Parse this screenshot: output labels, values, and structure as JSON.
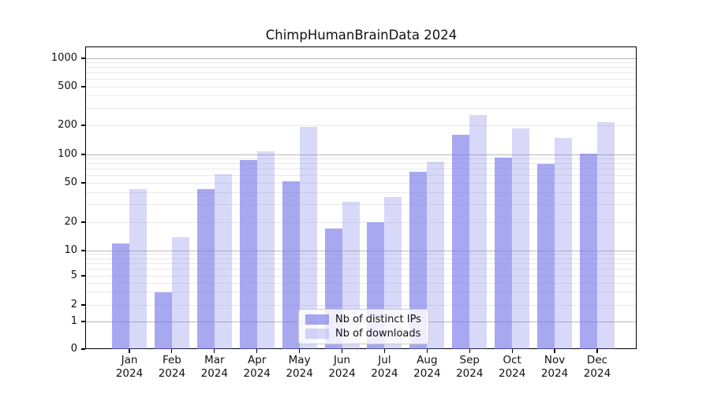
{
  "chart_data": {
    "type": "bar",
    "title": "ChimpHumanBrainData 2024",
    "categories": [
      "Jan",
      "Feb",
      "Mar",
      "Apr",
      "May",
      "Jun",
      "Jul",
      "Aug",
      "Sep",
      "Oct",
      "Nov",
      "Dec"
    ],
    "year": "2024",
    "series": [
      {
        "name": "Nb of distinct IPs",
        "color": "#7a7ae9",
        "fill_alpha": 0.65,
        "values": [
          12,
          3,
          43,
          87,
          52,
          17,
          20,
          65,
          160,
          92,
          80,
          102
        ]
      },
      {
        "name": "Nb of downloads",
        "color": "#7a7ae9",
        "fill_alpha": 0.29,
        "values": [
          43,
          14,
          62,
          108,
          193,
          32,
          36,
          84,
          257,
          185,
          148,
          215
        ]
      }
    ],
    "y_axis": {
      "scale": "symlog",
      "tick_values": [
        0,
        1,
        2,
        5,
        10,
        20,
        50,
        100,
        200,
        500,
        1000
      ],
      "tick_labels": [
        "0",
        "1",
        "2",
        "5",
        "10",
        "20",
        "50",
        "100",
        "200",
        "500",
        "1000"
      ],
      "minor_grid_values": [
        3,
        4,
        6,
        7,
        8,
        9,
        30,
        40,
        60,
        70,
        80,
        90,
        300,
        400,
        600,
        700,
        800,
        900
      ],
      "major_grid_values": [
        1,
        10,
        100,
        1000
      ],
      "ylim": [
        0,
        1500
      ]
    },
    "grid": "both",
    "legend": {
      "position": "lower center"
    }
  }
}
